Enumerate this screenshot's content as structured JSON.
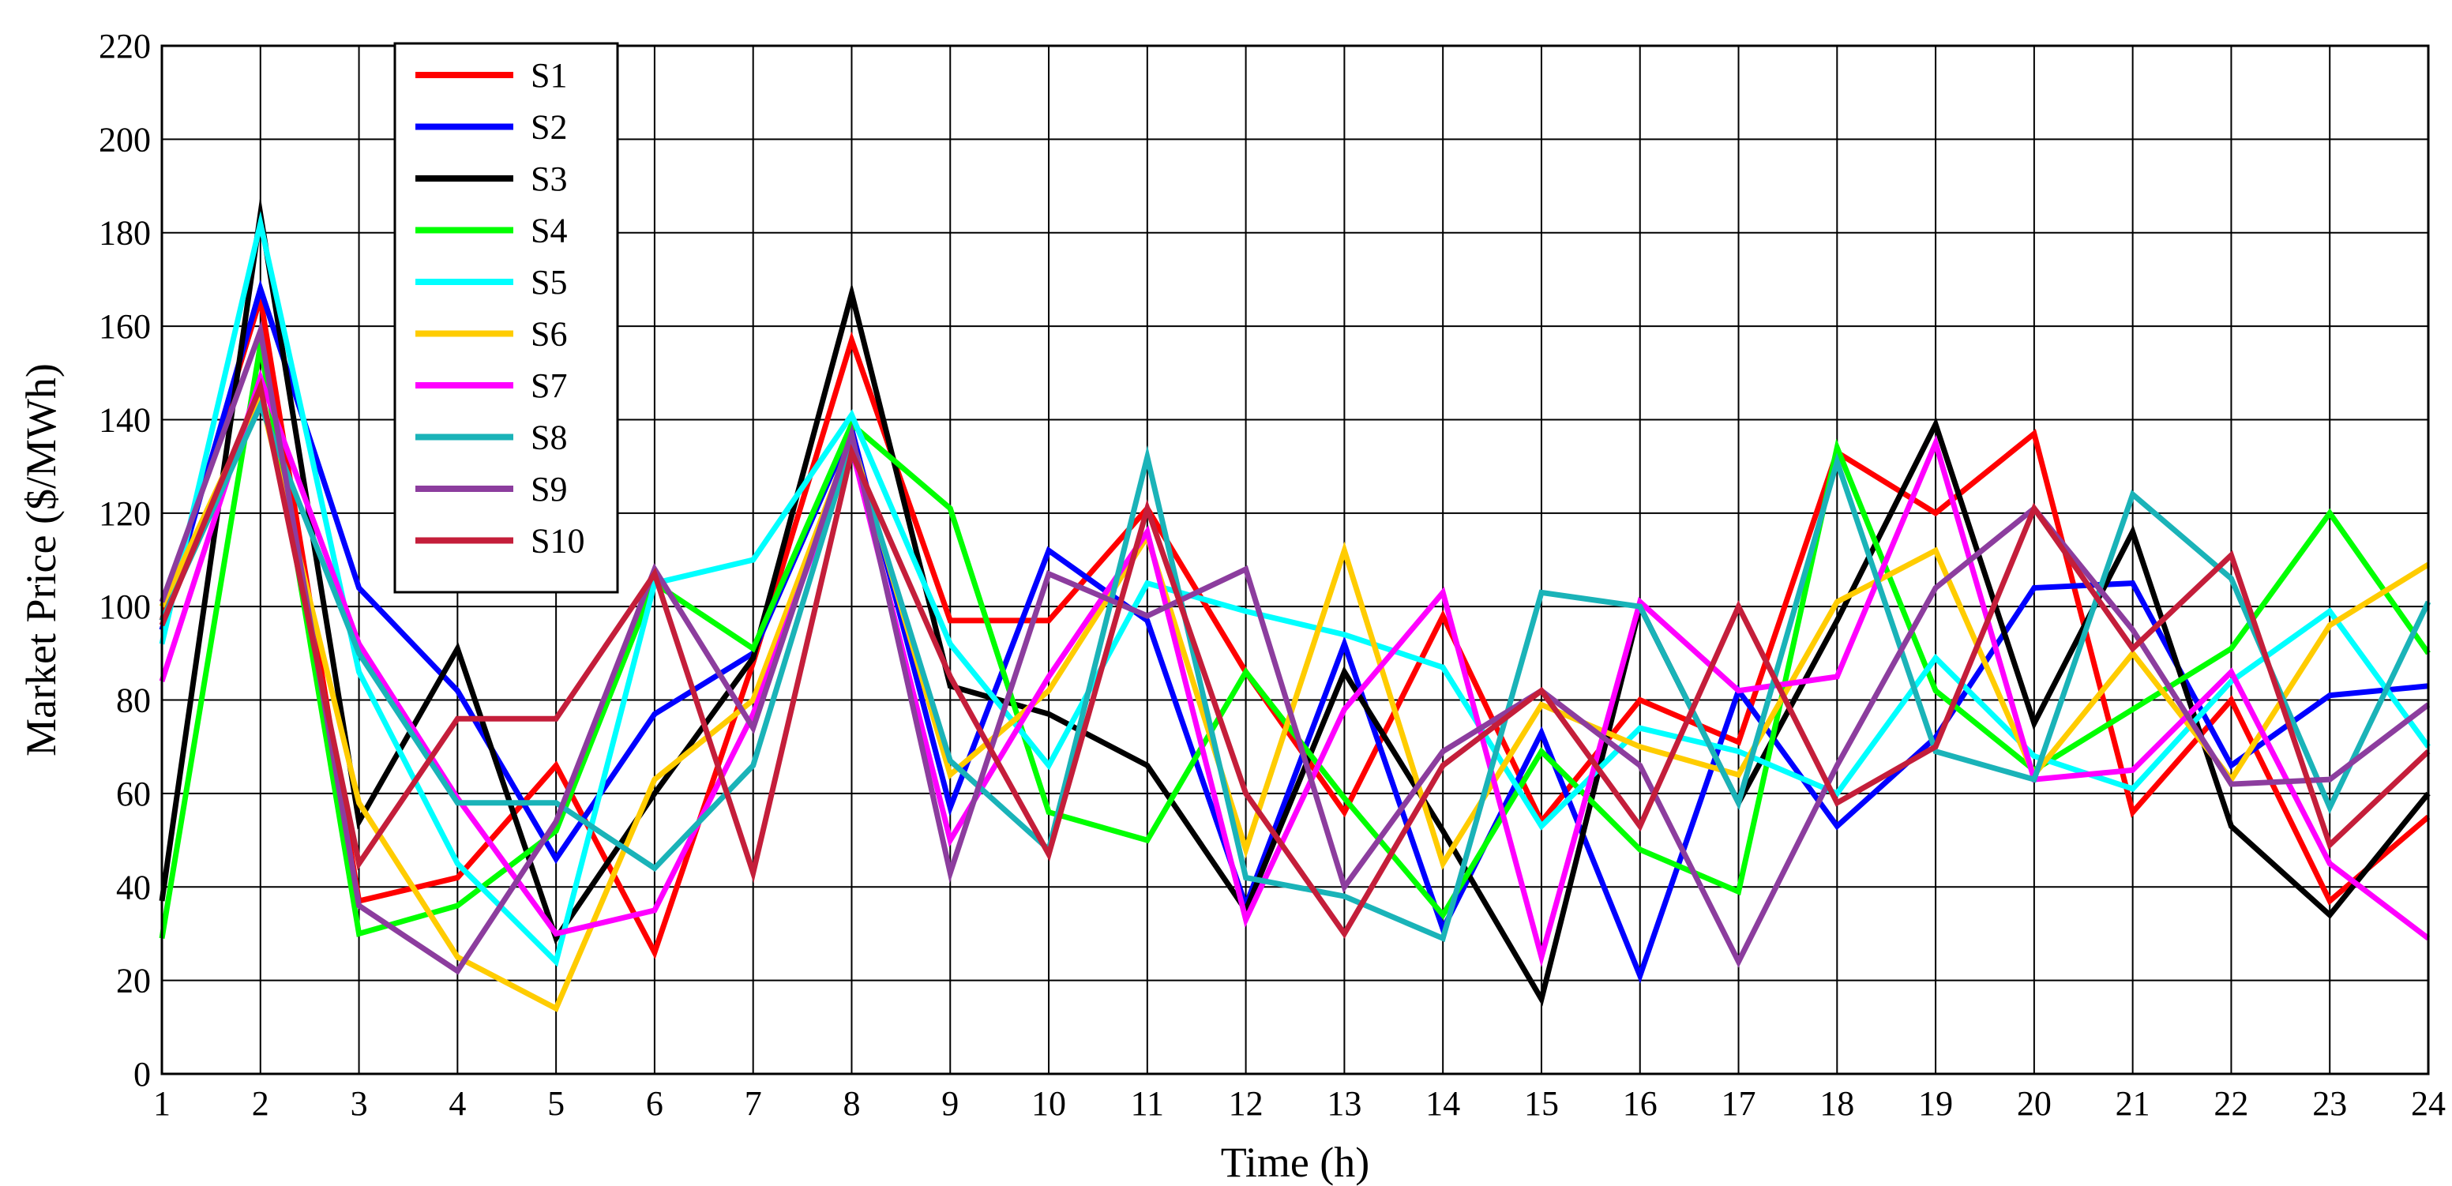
{
  "chart_data": {
    "type": "line",
    "title": "",
    "xlabel": "Time (h)",
    "ylabel": "Market Price ($/MWh)",
    "xlim": [
      1,
      24
    ],
    "ylim": [
      0,
      220
    ],
    "x": [
      1,
      2,
      3,
      4,
      5,
      6,
      7,
      8,
      9,
      10,
      11,
      12,
      13,
      14,
      15,
      16,
      17,
      18,
      19,
      20,
      21,
      22,
      23,
      24
    ],
    "yticks": [
      0,
      20,
      40,
      60,
      80,
      100,
      120,
      140,
      160,
      180,
      200,
      220
    ],
    "grid": true,
    "legend_position": "top-left",
    "series": [
      {
        "name": "S1",
        "color": "#ff0000",
        "values": [
          97,
          166,
          37,
          42,
          66,
          26,
          88,
          157,
          97,
          97,
          121,
          86,
          56,
          98,
          54,
          80,
          71,
          133,
          120,
          137,
          56,
          80,
          37,
          55
        ]
      },
      {
        "name": "S2",
        "color": "#0000ff",
        "values": [
          95,
          168,
          104,
          82,
          46,
          77,
          90,
          138,
          57,
          112,
          97,
          36,
          92,
          31,
          73,
          21,
          82,
          53,
          72,
          104,
          105,
          66,
          81,
          83
        ]
      },
      {
        "name": "S3",
        "color": "#000000",
        "values": [
          37,
          184,
          54,
          91,
          29,
          60,
          89,
          167,
          83,
          77,
          66,
          35,
          86,
          52,
          16,
          100,
          58,
          97,
          139,
          75,
          116,
          53,
          34,
          60
        ]
      },
      {
        "name": "S4",
        "color": "#00ff00",
        "values": [
          29,
          156,
          30,
          36,
          52,
          105,
          91,
          139,
          121,
          56,
          50,
          86,
          59,
          34,
          69,
          48,
          39,
          134,
          82,
          65,
          78,
          91,
          120,
          90
        ]
      },
      {
        "name": "S5",
        "color": "#00ffff",
        "values": [
          92,
          182,
          86,
          45,
          24,
          105,
          110,
          141,
          92,
          66,
          105,
          99,
          94,
          87,
          53,
          74,
          69,
          60,
          89,
          68,
          61,
          84,
          99,
          70
        ]
      },
      {
        "name": "S6",
        "color": "#ffcc00",
        "values": [
          100,
          145,
          58,
          25,
          14,
          63,
          80,
          136,
          64,
          82,
          115,
          48,
          112,
          45,
          79,
          70,
          64,
          101,
          112,
          64,
          90,
          63,
          96,
          109
        ]
      },
      {
        "name": "S7",
        "color": "#ff00ff",
        "values": [
          84,
          149,
          92,
          59,
          30,
          35,
          77,
          134,
          50,
          85,
          116,
          33,
          78,
          103,
          25,
          101,
          82,
          85,
          135,
          63,
          65,
          86,
          45,
          29
        ]
      },
      {
        "name": "S8",
        "color": "#1ab3b8",
        "values": [
          97,
          143,
          90,
          58,
          58,
          44,
          66,
          135,
          67,
          48,
          132,
          42,
          38,
          29,
          103,
          100,
          58,
          131,
          69,
          63,
          124,
          106,
          57,
          101
        ]
      },
      {
        "name": "S9",
        "color": "#8c3d9e",
        "values": [
          101,
          159,
          36,
          22,
          54,
          108,
          74,
          137,
          43,
          107,
          98,
          108,
          40,
          69,
          82,
          66,
          24,
          66,
          104,
          121,
          95,
          62,
          63,
          79
        ]
      },
      {
        "name": "S10",
        "color": "#c41e3a",
        "values": [
          96,
          147,
          45,
          76,
          76,
          107,
          43,
          133,
          85,
          47,
          121,
          60,
          30,
          66,
          82,
          53,
          100,
          58,
          70,
          121,
          91,
          111,
          49,
          69
        ]
      }
    ]
  }
}
